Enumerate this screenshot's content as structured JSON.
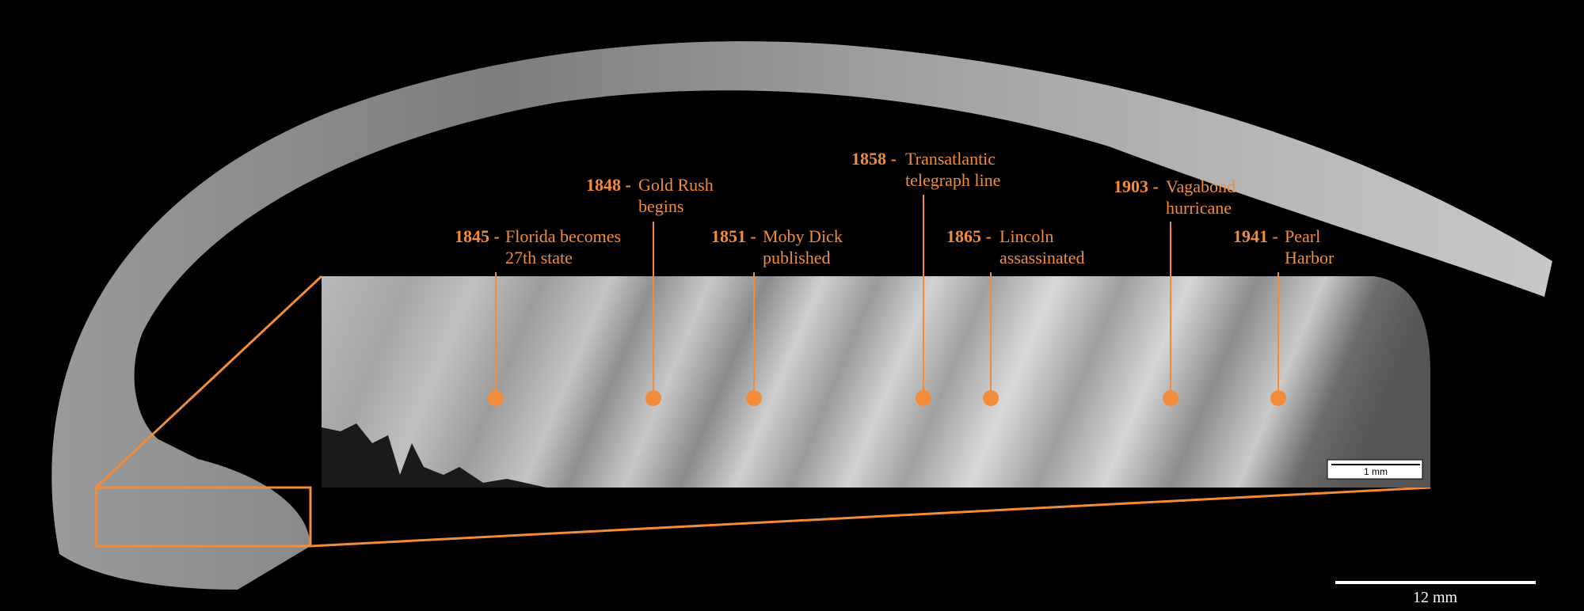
{
  "annotations": [
    {
      "year": "1845 -",
      "lines": [
        "Florida becomes",
        "27th state"
      ]
    },
    {
      "year": "1848 -",
      "lines": [
        "Gold Rush",
        "begins"
      ]
    },
    {
      "year": "1851 -",
      "lines": [
        "Moby Dick",
        "published"
      ]
    },
    {
      "year": "1858 -",
      "lines": [
        "Transatlantic",
        "telegraph line"
      ]
    },
    {
      "year": "1865 -",
      "lines": [
        "Lincoln",
        "assassinated"
      ]
    },
    {
      "year": "1903 -",
      "lines": [
        "Vagabond",
        "hurricane"
      ]
    },
    {
      "year": "1941 -",
      "lines": [
        "Pearl",
        "Harbor"
      ]
    }
  ],
  "inset_scale_bar": "1 mm",
  "main_scale_bar": "12 mm"
}
